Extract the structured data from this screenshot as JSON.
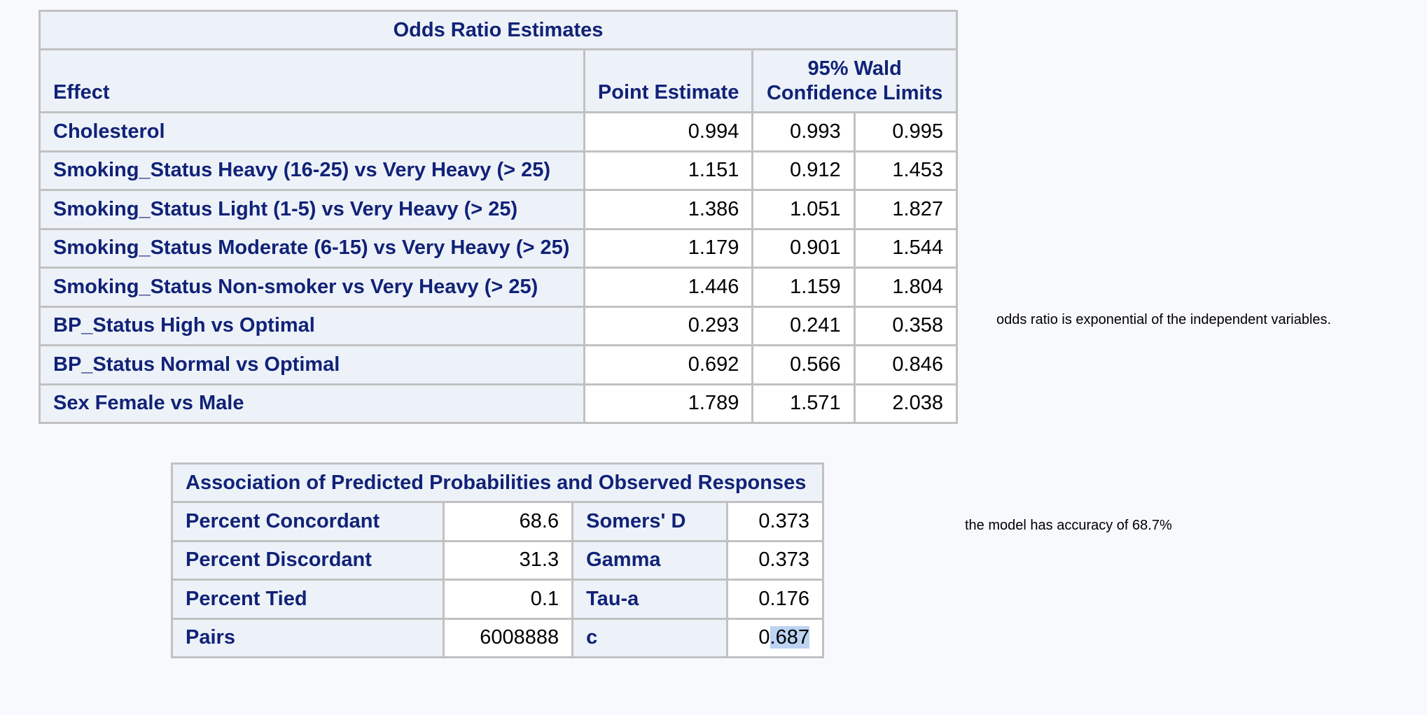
{
  "odds_ratio_table": {
    "title": "Odds Ratio Estimates",
    "headers": {
      "effect": "Effect",
      "point_estimate": "Point Estimate",
      "ci_line1": "95% Wald",
      "ci_line2": "Confidence Limits"
    },
    "rows": [
      {
        "effect": "Cholesterol",
        "estimate": "0.994",
        "lower": "0.993",
        "upper": "0.995"
      },
      {
        "effect": "Smoking_Status Heavy (16-25) vs Very Heavy (> 25)",
        "estimate": "1.151",
        "lower": "0.912",
        "upper": "1.453"
      },
      {
        "effect": "Smoking_Status Light (1-5) vs Very Heavy (> 25)",
        "estimate": "1.386",
        "lower": "1.051",
        "upper": "1.827"
      },
      {
        "effect": "Smoking_Status Moderate (6-15) vs Very Heavy (> 25)",
        "estimate": "1.179",
        "lower": "0.901",
        "upper": "1.544"
      },
      {
        "effect": "Smoking_Status Non-smoker vs Very Heavy (> 25)",
        "estimate": "1.446",
        "lower": "1.159",
        "upper": "1.804"
      },
      {
        "effect": "BP_Status High vs Optimal",
        "estimate": "0.293",
        "lower": "0.241",
        "upper": "0.358"
      },
      {
        "effect": "BP_Status Normal vs Optimal",
        "estimate": "0.692",
        "lower": "0.566",
        "upper": "0.846"
      },
      {
        "effect": "Sex Female vs Male",
        "estimate": "1.789",
        "lower": "1.571",
        "upper": "2.038"
      }
    ]
  },
  "association_table": {
    "title": "Association of Predicted Probabilities and Observed Responses",
    "rows": [
      {
        "label1": "Percent Concordant",
        "value1": "68.6",
        "label2": "Somers' D",
        "value2": "0.373"
      },
      {
        "label1": "Percent Discordant",
        "value1": "31.3",
        "label2": "Gamma",
        "value2": "0.373"
      },
      {
        "label1": "Percent Tied",
        "value1": "0.1",
        "label2": "Tau-a",
        "value2": "0.176"
      },
      {
        "label1": "Pairs",
        "value1": "6008888",
        "label2": "c",
        "value2_prefix": "0",
        "value2_selected": ".687"
      }
    ]
  },
  "notes": {
    "odds_note": "odds ratio is exponential of the independent variables.",
    "accuracy_note": "the model has accuracy of 68.7%"
  },
  "colors": {
    "header_bg": "#edf2f9",
    "header_text": "#112277",
    "border": "#c1c1c1",
    "page_bg": "#f8f9fd",
    "selection": "#bcd3f2"
  }
}
